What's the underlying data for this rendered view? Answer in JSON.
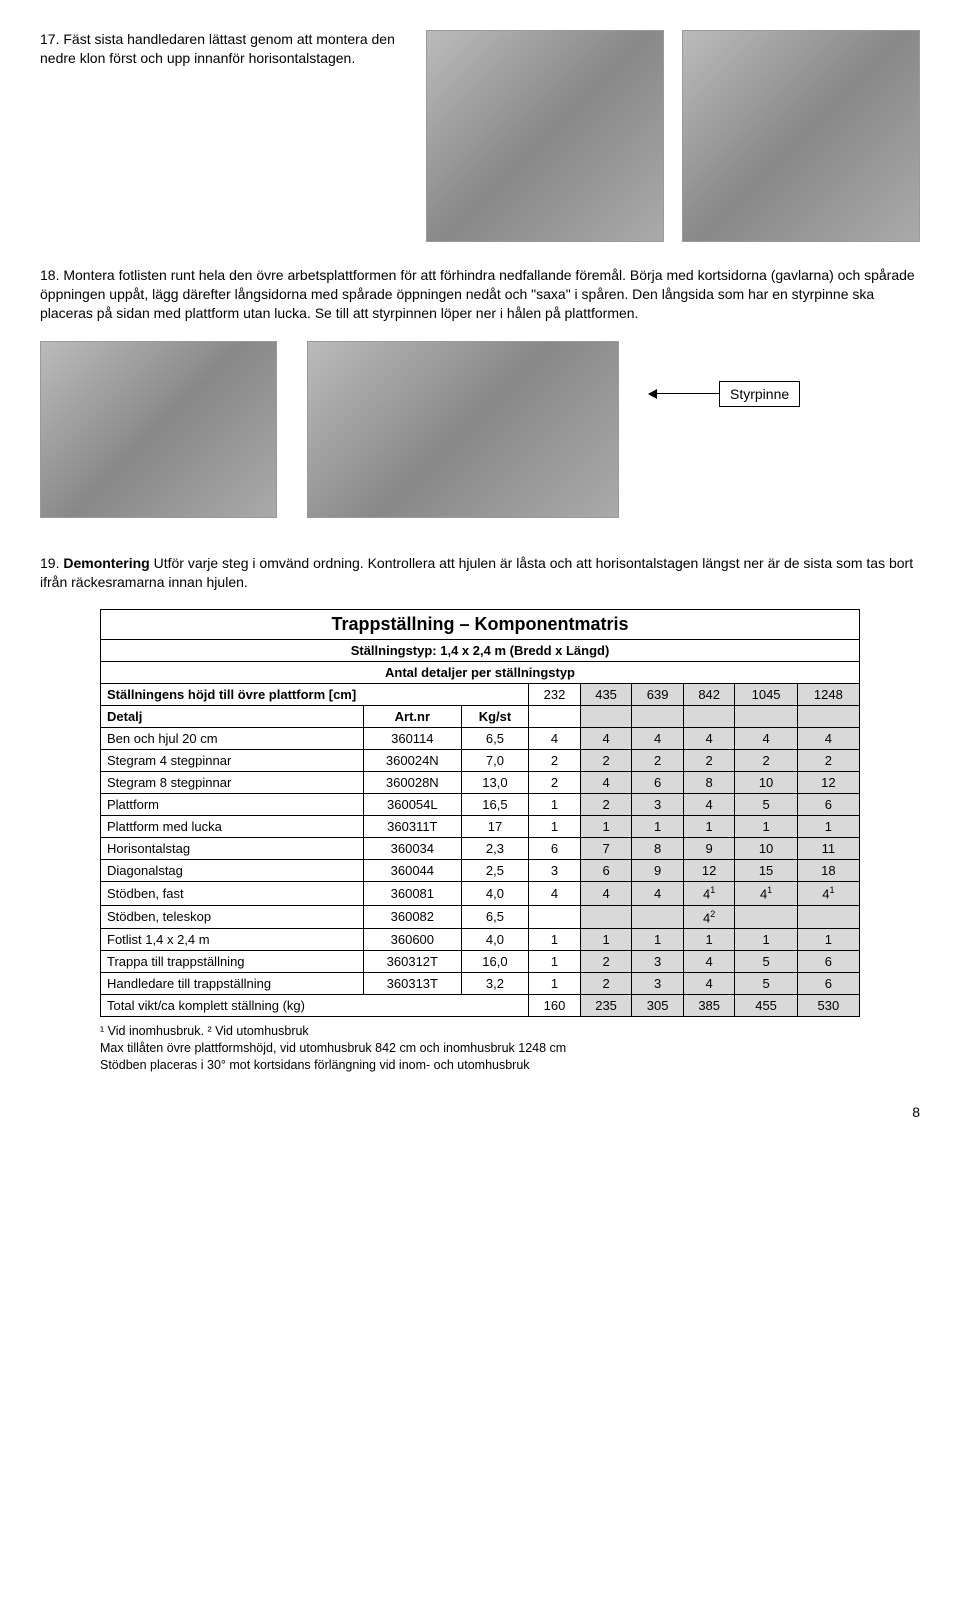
{
  "step17": {
    "text": "17. Fäst sista handledaren lättast genom att montera den nedre klon först och upp innanför horisontalstagen."
  },
  "step18": {
    "text": "18. Montera fotlisten runt hela den övre arbetsplattformen för att förhindra nedfallande föremål. Börja med kortsidorna (gavlarna) och spårade öppningen uppåt, lägg därefter långsidorna med spårade öppningen nedåt och \"saxa\" i spåren. Den långsida som har en styrpinne ska placeras på sidan med plattform utan lucka. Se till att styrpinnen löper ner i hålen på plattformen."
  },
  "callout": {
    "label": "Styrpinne"
  },
  "step19": {
    "prefix": "19. ",
    "bold": "Demontering",
    "rest": " Utför varje steg i omvänd ordning. Kontrollera att hjulen är låsta och att horisontalstagen längst ner är de sista som tas bort ifrån räckesramarna innan hjulen."
  },
  "table": {
    "title": "Trappställning – Komponentmatris",
    "sub1": "Ställningstyp: 1,4 x 2,4 m  (Bredd x Längd)",
    "sub2": "Antal detaljer per ställningstyp",
    "header_row": {
      "label": "Ställningens höjd till övre plattform [cm]",
      "cols": [
        "232",
        "435",
        "639",
        "842",
        "1045",
        "1248"
      ]
    },
    "col_headers": [
      "Detalj",
      "Art.nr",
      "Kg/st"
    ],
    "rows": [
      {
        "d": "Ben och hjul 20 cm",
        "a": "360114",
        "k": "6,5",
        "v": [
          "4",
          "4",
          "4",
          "4",
          "4",
          "4"
        ],
        "grey": [
          1,
          2,
          3,
          4,
          5
        ]
      },
      {
        "d": "Stegram 4 stegpinnar",
        "a": "360024N",
        "k": "7,0",
        "v": [
          "2",
          "2",
          "2",
          "2",
          "2",
          "2"
        ],
        "grey": [
          1,
          2,
          3,
          4,
          5
        ]
      },
      {
        "d": "Stegram 8 stegpinnar",
        "a": "360028N",
        "k": "13,0",
        "v": [
          "2",
          "4",
          "6",
          "8",
          "10",
          "12"
        ],
        "grey": [
          1,
          2,
          3,
          4,
          5
        ]
      },
      {
        "d": "Plattform",
        "a": "360054L",
        "k": "16,5",
        "v": [
          "1",
          "2",
          "3",
          "4",
          "5",
          "6"
        ],
        "grey": [
          1,
          2,
          3,
          4,
          5
        ]
      },
      {
        "d": "Plattform med lucka",
        "a": "360311T",
        "k": "17",
        "v": [
          "1",
          "1",
          "1",
          "1",
          "1",
          "1"
        ],
        "grey": [
          1,
          2,
          3,
          4,
          5
        ]
      },
      {
        "d": "Horisontalstag",
        "a": "360034",
        "k": "2,3",
        "v": [
          "6",
          "7",
          "8",
          "9",
          "10",
          "11"
        ],
        "grey": [
          1,
          2,
          3,
          4,
          5
        ]
      },
      {
        "d": "Diagonalstag",
        "a": "360044",
        "k": "2,5",
        "v": [
          "3",
          "6",
          "9",
          "12",
          "15",
          "18"
        ],
        "grey": [
          1,
          2,
          3,
          4,
          5
        ]
      },
      {
        "d": "Stödben, fast",
        "a": "360081",
        "k": "4,0",
        "v": [
          "4",
          "4",
          "4",
          "4¹",
          "4¹",
          "4¹"
        ],
        "grey": [
          1,
          2,
          3,
          4,
          5
        ],
        "sup": true
      },
      {
        "d": "Stödben, teleskop",
        "a": "360082",
        "k": "6,5",
        "v": [
          "",
          "",
          "",
          "4²",
          "",
          ""
        ],
        "grey": [
          1,
          2,
          3,
          4,
          5
        ]
      },
      {
        "d": "Fotlist 1,4 x 2,4 m",
        "a": "360600",
        "k": "4,0",
        "v": [
          "1",
          "1",
          "1",
          "1",
          "1",
          "1"
        ],
        "grey": [
          1,
          2,
          3,
          4,
          5
        ]
      },
      {
        "d": "Trappa till trappställning",
        "a": "360312T",
        "k": "16,0",
        "v": [
          "1",
          "2",
          "3",
          "4",
          "5",
          "6"
        ],
        "grey": [
          1,
          2,
          3,
          4,
          5
        ]
      },
      {
        "d": "Handledare till trappställning",
        "a": "360313T",
        "k": "3,2",
        "v": [
          "1",
          "2",
          "3",
          "4",
          "5",
          "6"
        ],
        "grey": [
          1,
          2,
          3,
          4,
          5
        ]
      }
    ],
    "total_row": {
      "label": "Total vikt/ca komplett ställning (kg)",
      "v": [
        "160",
        "235",
        "305",
        "385",
        "455",
        "530"
      ],
      "grey": [
        1,
        2,
        3,
        4,
        5
      ]
    }
  },
  "footnotes": {
    "l1a": "¹ Vid inomhusbruk.  ",
    "l1b": "² Vid utomhusbruk",
    "l2": "Max tillåten övre plattformshöjd, vid utomhusbruk 842 cm och inomhusbruk 1248 cm",
    "l3": "Stödben placeras i 30° mot kortsidans förlängning vid inom- och utomhusbruk"
  },
  "page": "8"
}
